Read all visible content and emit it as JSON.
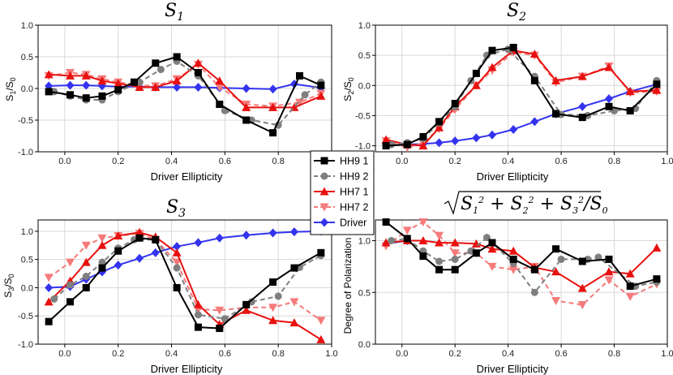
{
  "legend": [
    {
      "name": "HH9 1",
      "color": "#000000",
      "marker": "square",
      "dash": "solid"
    },
    {
      "name": "HH9 2",
      "color": "#7f7f7f",
      "marker": "circle",
      "dash": "dashed"
    },
    {
      "name": "HH7 1",
      "color": "#e8110f",
      "marker": "triangle-up",
      "dash": "solid"
    },
    {
      "name": "HH7 2",
      "color": "#f57a7a",
      "marker": "triangle-down",
      "dash": "dashed"
    },
    {
      "name": "Driver",
      "color": "#3333f0",
      "marker": "diamond",
      "dash": "solid"
    }
  ],
  "chart_data": [
    {
      "id": "s1",
      "type": "line",
      "title": "S1",
      "title_main": "S",
      "title_sub": "1",
      "xlabel": "Driver Ellipticity",
      "ylabel": "S1/S0",
      "ylabel_parts": {
        "a": "S",
        "a_sub": "1",
        "b": "/S",
        "b_sub": "0"
      },
      "xlim": [
        -0.1,
        1.0
      ],
      "ylim": [
        -1.0,
        1.0
      ],
      "xticks": [
        "0.0",
        "0.2",
        "0.4",
        "0.6",
        "0.8"
      ],
      "xtick_values": [
        0.0,
        0.2,
        0.4,
        0.6,
        0.8
      ],
      "yticks": [
        "-1.0",
        "-0.5",
        "0.0",
        "0.5",
        "1.0"
      ],
      "ytick_values": [
        -1.0,
        -0.5,
        0.0,
        0.5,
        1.0
      ],
      "series": [
        {
          "name": "HH9 1",
          "x": [
            -0.06,
            0.02,
            0.08,
            0.14,
            0.2,
            0.26,
            0.34,
            0.42,
            0.5,
            0.58,
            0.68,
            0.78,
            0.88,
            0.96
          ],
          "y": [
            -0.05,
            -0.1,
            -0.15,
            -0.12,
            -0.02,
            0.1,
            0.4,
            0.5,
            0.25,
            -0.25,
            -0.5,
            -0.7,
            0.2,
            0.05
          ]
        },
        {
          "name": "HH9 2",
          "x": [
            -0.04,
            0.02,
            0.08,
            0.14,
            0.2,
            0.28,
            0.36,
            0.42,
            0.5,
            0.6,
            0.7,
            0.8,
            0.9,
            0.96
          ],
          "y": [
            -0.05,
            -0.12,
            -0.18,
            -0.18,
            -0.05,
            0.1,
            0.3,
            0.43,
            0.2,
            -0.35,
            -0.5,
            -0.58,
            -0.1,
            0.1
          ]
        },
        {
          "name": "HH7 1",
          "x": [
            -0.06,
            0.02,
            0.08,
            0.14,
            0.2,
            0.28,
            0.34,
            0.42,
            0.5,
            0.58,
            0.68,
            0.78,
            0.86,
            0.96
          ],
          "y": [
            0.22,
            0.2,
            0.2,
            0.12,
            0.08,
            0.02,
            0.02,
            0.12,
            0.4,
            0.12,
            -0.3,
            -0.3,
            -0.3,
            -0.12
          ]
        },
        {
          "name": "HH7 2",
          "x": [
            -0.06,
            0.02,
            0.08,
            0.14,
            0.2,
            0.28,
            0.34,
            0.42,
            0.5,
            0.58,
            0.68,
            0.78,
            0.88,
            0.96
          ],
          "y": [
            0.2,
            0.25,
            0.22,
            0.15,
            0.1,
            0.05,
            0.04,
            0.15,
            0.38,
            0.02,
            -0.25,
            -0.28,
            -0.22,
            -0.08
          ]
        },
        {
          "name": "Driver",
          "x": [
            -0.06,
            0.02,
            0.08,
            0.14,
            0.2,
            0.28,
            0.34,
            0.42,
            0.5,
            0.58,
            0.68,
            0.78,
            0.86,
            0.96
          ],
          "y": [
            0.04,
            0.05,
            0.05,
            0.04,
            0.03,
            0.03,
            0.02,
            0.02,
            0.02,
            0.01,
            0.0,
            -0.01,
            0.07,
            0.01
          ]
        }
      ]
    },
    {
      "id": "s2",
      "type": "line",
      "title": "S2",
      "title_main": "S",
      "title_sub": "2",
      "xlabel": "Driver Ellipticity",
      "ylabel": "S2/S0",
      "ylabel_parts": {
        "a": "S",
        "a_sub": "2",
        "b": "/S",
        "b_sub": "0"
      },
      "xlim": [
        -0.1,
        1.0
      ],
      "ylim": [
        -1.1,
        1.0
      ],
      "xticks": [
        "0.0",
        "0.2",
        "0.4",
        "0.6",
        "0.8",
        "1.0"
      ],
      "xtick_values": [
        0.0,
        0.2,
        0.4,
        0.6,
        0.8,
        1.0
      ],
      "yticks": [
        "-1.0",
        "-0.5",
        "0.0",
        "0.5",
        "1.0"
      ],
      "ytick_values": [
        -1.0,
        -0.5,
        0.0,
        0.5,
        1.0
      ],
      "series": [
        {
          "name": "HH9 1",
          "x": [
            -0.06,
            0.02,
            0.08,
            0.14,
            0.2,
            0.28,
            0.34,
            0.42,
            0.5,
            0.58,
            0.68,
            0.78,
            0.86,
            0.96
          ],
          "y": [
            -1.0,
            -0.98,
            -0.85,
            -0.6,
            -0.3,
            0.2,
            0.58,
            0.63,
            0.08,
            -0.47,
            -0.53,
            -0.35,
            -0.42,
            0.02
          ]
        },
        {
          "name": "HH9 2",
          "x": [
            -0.04,
            0.02,
            0.08,
            0.14,
            0.2,
            0.26,
            0.32,
            0.4,
            0.5,
            0.6,
            0.7,
            0.8,
            0.88,
            0.96
          ],
          "y": [
            -0.98,
            -0.95,
            -0.88,
            -0.62,
            -0.35,
            0.08,
            0.5,
            0.6,
            0.15,
            -0.48,
            -0.5,
            -0.42,
            -0.38,
            0.08
          ]
        },
        {
          "name": "HH7 1",
          "x": [
            -0.06,
            0.02,
            0.08,
            0.14,
            0.2,
            0.28,
            0.34,
            0.42,
            0.5,
            0.58,
            0.68,
            0.78,
            0.86,
            0.96
          ],
          "y": [
            -0.9,
            -0.98,
            -1.0,
            -0.7,
            -0.35,
            0.0,
            0.3,
            0.58,
            0.52,
            0.08,
            0.15,
            0.3,
            -0.1,
            -0.08
          ]
        },
        {
          "name": "HH7 2",
          "x": [
            -0.06,
            0.02,
            0.08,
            0.14,
            0.2,
            0.28,
            0.34,
            0.42,
            0.5,
            0.58,
            0.68,
            0.78,
            0.86,
            0.96
          ],
          "y": [
            -0.92,
            -1.03,
            -0.95,
            -0.72,
            -0.4,
            0.0,
            0.25,
            0.55,
            0.5,
            0.05,
            0.15,
            0.32,
            -0.12,
            -0.1
          ]
        },
        {
          "name": "Driver",
          "x": [
            -0.06,
            0.02,
            0.08,
            0.14,
            0.2,
            0.28,
            0.34,
            0.42,
            0.5,
            0.58,
            0.68,
            0.78,
            0.86,
            0.96
          ],
          "y": [
            -0.98,
            -0.98,
            -0.97,
            -0.95,
            -0.92,
            -0.87,
            -0.82,
            -0.73,
            -0.6,
            -0.47,
            -0.35,
            -0.22,
            -0.1,
            0.02
          ]
        }
      ]
    },
    {
      "id": "s3",
      "type": "line",
      "title": "S3",
      "title_main": "S",
      "title_sub": "3",
      "xlabel": "Driver Ellipticity",
      "ylabel": "S3/S0",
      "ylabel_parts": {
        "a": "S",
        "a_sub": "3",
        "b": "/S",
        "b_sub": "0"
      },
      "xlim": [
        -0.1,
        1.0
      ],
      "ylim": [
        -1.0,
        1.2
      ],
      "xticks": [
        "0.0",
        "0.2",
        "0.4",
        "0.6",
        "0.8",
        "1.0"
      ],
      "xtick_values": [
        0.0,
        0.2,
        0.4,
        0.6,
        0.8,
        1.0
      ],
      "yticks": [
        "-1.0",
        "-0.5",
        "0.0",
        "0.5",
        "1.0"
      ],
      "ytick_values": [
        -1.0,
        -0.5,
        0.0,
        0.5,
        1.0
      ],
      "series": [
        {
          "name": "HH9 1",
          "x": [
            -0.06,
            0.02,
            0.08,
            0.14,
            0.2,
            0.28,
            0.34,
            0.42,
            0.5,
            0.58,
            0.68,
            0.78,
            0.86,
            0.96
          ],
          "y": [
            -0.6,
            -0.25,
            0.0,
            0.35,
            0.65,
            0.88,
            0.85,
            0.0,
            -0.7,
            -0.72,
            -0.3,
            0.1,
            0.35,
            0.62
          ]
        },
        {
          "name": "HH9 2",
          "x": [
            -0.04,
            0.02,
            0.08,
            0.14,
            0.2,
            0.26,
            0.34,
            0.42,
            0.5,
            0.6,
            0.7,
            0.8,
            0.88,
            0.96
          ],
          "y": [
            -0.2,
            0.05,
            0.2,
            0.45,
            0.7,
            0.85,
            0.85,
            0.35,
            -0.48,
            -0.55,
            -0.25,
            -0.15,
            0.36,
            0.57
          ]
        },
        {
          "name": "HH7 1",
          "x": [
            -0.06,
            0.02,
            0.08,
            0.14,
            0.2,
            0.28,
            0.34,
            0.42,
            0.5,
            0.58,
            0.68,
            0.78,
            0.86,
            0.96
          ],
          "y": [
            -0.25,
            0.12,
            0.45,
            0.75,
            0.92,
            0.98,
            0.9,
            0.62,
            -0.3,
            -0.65,
            -0.4,
            -0.58,
            -0.62,
            -0.92
          ]
        },
        {
          "name": "HH7 2",
          "x": [
            -0.06,
            0.02,
            0.08,
            0.14,
            0.2,
            0.28,
            0.34,
            0.42,
            0.5,
            0.58,
            0.68,
            0.78,
            0.86,
            0.96
          ],
          "y": [
            0.18,
            0.45,
            0.75,
            0.88,
            0.92,
            0.96,
            0.85,
            0.45,
            -0.38,
            -0.4,
            -0.35,
            -0.35,
            -0.25,
            -0.58
          ]
        },
        {
          "name": "Driver",
          "x": [
            -0.06,
            0.02,
            0.08,
            0.14,
            0.2,
            0.28,
            0.34,
            0.42,
            0.5,
            0.58,
            0.68,
            0.78,
            0.86,
            0.96
          ],
          "y": [
            0.0,
            0.02,
            0.15,
            0.28,
            0.4,
            0.52,
            0.62,
            0.73,
            0.8,
            0.88,
            0.93,
            0.97,
            0.99,
            1.0
          ]
        }
      ]
    },
    {
      "id": "dop",
      "type": "line",
      "title": "sqrt(S1^2 + S2^2 + S3^2)/S0",
      "xlabel": "Driver Ellipticity",
      "ylabel": "Degree of Polarization",
      "xlim": [
        -0.1,
        1.0
      ],
      "ylim": [
        0.0,
        1.2
      ],
      "xticks": [
        "0.0",
        "0.2",
        "0.4",
        "0.6",
        "0.8",
        "1.0"
      ],
      "xtick_values": [
        0.0,
        0.2,
        0.4,
        0.6,
        0.8,
        1.0
      ],
      "yticks": [
        "0.0",
        "0.5",
        "1.0"
      ],
      "ytick_values": [
        0.0,
        0.5,
        1.0
      ],
      "series": [
        {
          "name": "HH9 1",
          "x": [
            -0.06,
            0.02,
            0.08,
            0.14,
            0.2,
            0.28,
            0.34,
            0.42,
            0.5,
            0.58,
            0.68,
            0.78,
            0.86,
            0.96
          ],
          "y": [
            1.18,
            1.02,
            0.85,
            0.72,
            0.72,
            0.88,
            0.98,
            0.82,
            0.72,
            0.92,
            0.8,
            0.82,
            0.56,
            0.63
          ]
        },
        {
          "name": "HH9 2",
          "x": [
            -0.04,
            0.02,
            0.08,
            0.14,
            0.2,
            0.26,
            0.32,
            0.42,
            0.5,
            0.6,
            0.7,
            0.74,
            0.88,
            0.96
          ],
          "y": [
            1.0,
            1.02,
            0.9,
            0.8,
            0.82,
            0.9,
            1.03,
            0.78,
            0.5,
            0.82,
            0.82,
            0.84,
            0.56,
            0.6
          ]
        },
        {
          "name": "HH7 1",
          "x": [
            -0.06,
            0.02,
            0.08,
            0.14,
            0.2,
            0.28,
            0.34,
            0.42,
            0.5,
            0.58,
            0.68,
            0.78,
            0.86,
            0.96
          ],
          "y": [
            0.98,
            1.0,
            1.0,
            0.98,
            0.98,
            0.97,
            0.92,
            0.9,
            0.74,
            0.7,
            0.54,
            0.7,
            0.68,
            0.93
          ]
        },
        {
          "name": "HH7 2",
          "x": [
            -0.06,
            0.02,
            0.08,
            0.14,
            0.2,
            0.28,
            0.34,
            0.42,
            0.5,
            0.58,
            0.68,
            0.78,
            0.86,
            0.96
          ],
          "y": [
            0.95,
            1.1,
            1.18,
            1.05,
            0.88,
            0.88,
            0.75,
            0.72,
            0.75,
            0.42,
            0.38,
            0.62,
            0.46,
            0.58
          ]
        },
        {
          "name": "Driver",
          "x": [
            -0.06,
            0.02
          ],
          "y": [
            0.97,
            1.0
          ]
        }
      ]
    }
  ]
}
